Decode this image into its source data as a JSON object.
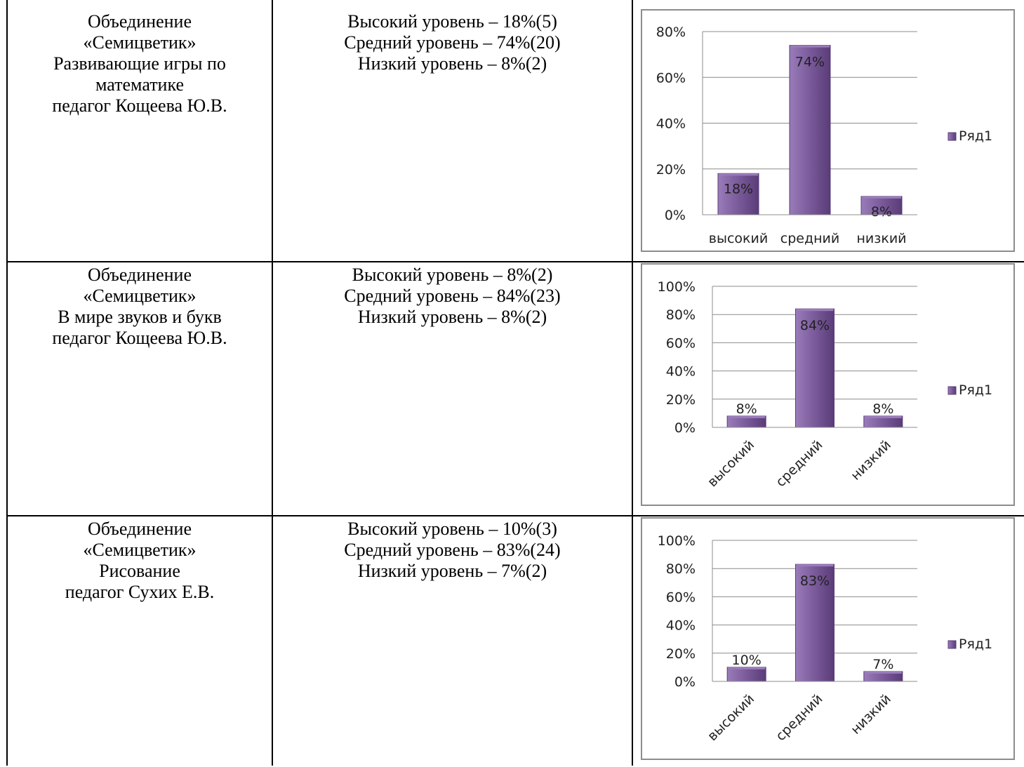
{
  "rows": [
    {
      "association": "Объединение\n«Семицветик»\nРазвивающие игры по\nматематике\nпедагог Кощеева Ю.В.",
      "levels": "Высокий уровень – 18%(5)\nСредний уровень – 74%(20)\nНизкий уровень – 8%(2)"
    },
    {
      "association": "Объединение\n«Семицветик»\nВ мире звуков и букв\nпедагог Кощеева Ю.В.",
      "levels": "Высокий уровень – 8%(2)\nСредний уровень – 84%(23)\nНизкий уровень – 8%(2)"
    },
    {
      "association": "Объединение\n«Семицветик»\nРисование\nпедагог Сухих Е.В.",
      "levels": "Высокий уровень – 10%(3)\nСредний уровень – 83%(24)\nНизкий уровень – 7%(2)"
    }
  ],
  "colors": {
    "bar": "#7a5a9a",
    "bar_dark": "#5a3c78",
    "bar_light": "#9a7cba",
    "grid": "#8c8c8c"
  },
  "chart_data": [
    {
      "type": "bar",
      "categories": [
        "высокий",
        "средний",
        "низкий"
      ],
      "series": [
        {
          "name": "Ряд1",
          "values": [
            18,
            74,
            8
          ]
        }
      ],
      "data_labels": [
        "18%",
        "74%",
        "8%"
      ],
      "ylim": [
        0,
        80
      ],
      "yticks": [
        "0%",
        "20%",
        "40%",
        "60%",
        "80%"
      ],
      "category_labels_rotated": false,
      "legend": "right",
      "grid": true
    },
    {
      "type": "bar",
      "categories": [
        "высокий",
        "средний",
        "низкий"
      ],
      "series": [
        {
          "name": "Ряд1",
          "values": [
            8,
            84,
            8
          ]
        }
      ],
      "data_labels": [
        "8%",
        "84%",
        "8%"
      ],
      "ylim": [
        0,
        100
      ],
      "yticks": [
        "0%",
        "20%",
        "40%",
        "60%",
        "80%",
        "100%"
      ],
      "category_labels_rotated": true,
      "legend": "right",
      "grid": true
    },
    {
      "type": "bar",
      "categories": [
        "высокий",
        "средний",
        "низкий"
      ],
      "series": [
        {
          "name": "Ряд1",
          "values": [
            10,
            83,
            7
          ]
        }
      ],
      "data_labels": [
        "10%",
        "83%",
        "7%"
      ],
      "ylim": [
        0,
        100
      ],
      "yticks": [
        "0%",
        "20%",
        "40%",
        "60%",
        "80%",
        "100%"
      ],
      "category_labels_rotated": true,
      "legend": "right",
      "grid": true
    }
  ]
}
